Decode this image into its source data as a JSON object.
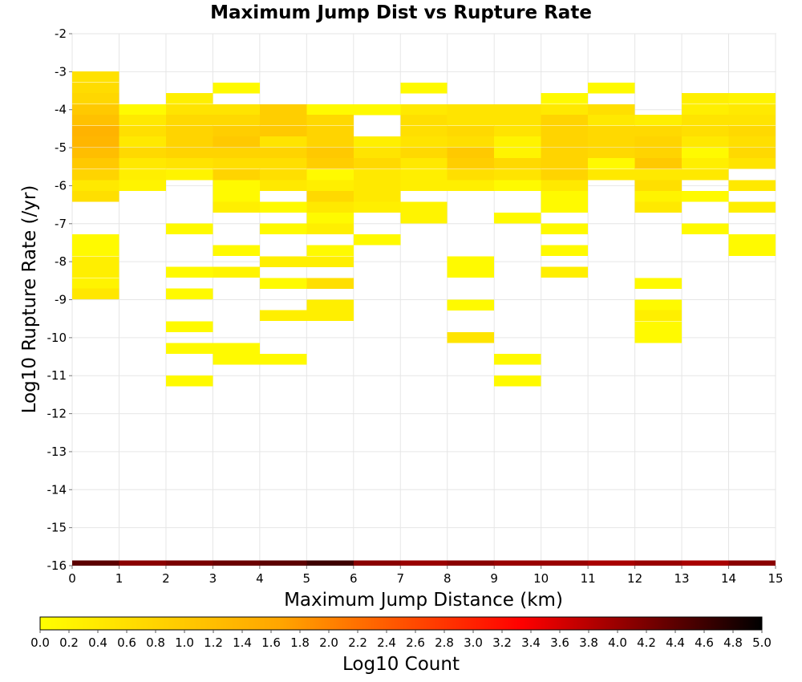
{
  "chart_data": {
    "type": "heatmap",
    "title": "Maximum Jump Dist vs Rupture Rate",
    "xlabel": "Maximum Jump Distance (km)",
    "ylabel": "Log10 Rupture Rate (/yr)",
    "xlim": [
      0,
      15
    ],
    "ylim": [
      -16,
      -2
    ],
    "x_ticks": [
      "0",
      "1",
      "2",
      "3",
      "4",
      "5",
      "6",
      "7",
      "8",
      "9",
      "10",
      "11",
      "12",
      "13",
      "14",
      "15"
    ],
    "y_ticks": [
      "-2",
      "-3",
      "-4",
      "-5",
      "-6",
      "-7",
      "-8",
      "-9",
      "-10",
      "-11",
      "-12",
      "-13",
      "-14",
      "-15",
      "-16"
    ],
    "grid": true,
    "colorbar": {
      "label": "Log10 Count",
      "range": [
        0,
        5
      ],
      "ticks": [
        "0.0",
        "0.2",
        "0.4",
        "0.6",
        "0.8",
        "1.0",
        "1.2",
        "1.4",
        "1.6",
        "1.8",
        "2.0",
        "2.2",
        "2.4",
        "2.6",
        "2.8",
        "3.0",
        "3.2",
        "3.4",
        "3.6",
        "3.8",
        "4.0",
        "4.2",
        "4.4",
        "4.6",
        "4.8",
        "5.0"
      ],
      "stops": [
        "#ffff00",
        "#ffa500",
        "#ff0000",
        "#000000"
      ]
    },
    "bin_width_x": 1,
    "bin_height_y": 0.285,
    "cells": [
      [
        0.5,
        -3.14,
        0.55
      ],
      [
        0.5,
        -3.43,
        0.65
      ],
      [
        0.5,
        -3.71,
        0.75
      ],
      [
        0.5,
        -4.0,
        1.0
      ],
      [
        0.5,
        -4.28,
        1.15
      ],
      [
        0.5,
        -4.57,
        1.4
      ],
      [
        0.5,
        -4.85,
        1.35
      ],
      [
        0.5,
        -5.14,
        1.2
      ],
      [
        0.5,
        -5.42,
        1.0
      ],
      [
        0.5,
        -5.71,
        0.8
      ],
      [
        0.5,
        -6.0,
        0.4
      ],
      [
        0.5,
        -6.28,
        0.6
      ],
      [
        0.5,
        -7.42,
        0.1
      ],
      [
        0.5,
        -7.71,
        0.1
      ],
      [
        0.5,
        -8.0,
        0.3
      ],
      [
        0.5,
        -8.28,
        0.3
      ],
      [
        0.5,
        -8.57,
        0.2
      ],
      [
        0.5,
        -8.85,
        0.45
      ],
      [
        1.5,
        -4.0,
        0.1
      ],
      [
        1.5,
        -4.28,
        0.4
      ],
      [
        1.5,
        -4.57,
        0.6
      ],
      [
        1.5,
        -4.85,
        0.4
      ],
      [
        1.5,
        -5.14,
        0.7
      ],
      [
        1.5,
        -5.42,
        0.4
      ],
      [
        1.5,
        -5.71,
        0.3
      ],
      [
        1.5,
        -6.0,
        0.2
      ],
      [
        2.5,
        -3.71,
        0.3
      ],
      [
        2.5,
        -4.0,
        0.5
      ],
      [
        2.5,
        -4.28,
        0.7
      ],
      [
        2.5,
        -4.57,
        0.8
      ],
      [
        2.5,
        -4.85,
        0.8
      ],
      [
        2.5,
        -5.14,
        0.8
      ],
      [
        2.5,
        -5.42,
        0.5
      ],
      [
        2.5,
        -5.71,
        0.2
      ],
      [
        2.5,
        -7.14,
        0.1
      ],
      [
        2.5,
        -8.28,
        0.1
      ],
      [
        2.5,
        -8.85,
        0.1
      ],
      [
        2.5,
        -9.71,
        0.1
      ],
      [
        2.5,
        -10.28,
        0.1
      ],
      [
        2.5,
        -11.14,
        0.1
      ],
      [
        3.5,
        -3.43,
        0.1
      ],
      [
        3.5,
        -4.0,
        0.5
      ],
      [
        3.5,
        -4.28,
        0.7
      ],
      [
        3.5,
        -4.57,
        0.9
      ],
      [
        3.5,
        -4.85,
        1.0
      ],
      [
        3.5,
        -5.14,
        0.8
      ],
      [
        3.5,
        -5.42,
        0.6
      ],
      [
        3.5,
        -5.71,
        0.8
      ],
      [
        3.5,
        -6.0,
        0.1
      ],
      [
        3.5,
        -6.28,
        0.1
      ],
      [
        3.5,
        -6.57,
        0.3
      ],
      [
        3.5,
        -7.71,
        0.1
      ],
      [
        3.5,
        -8.28,
        0.2
      ],
      [
        3.5,
        -10.28,
        0.1
      ],
      [
        3.5,
        -10.57,
        0.1
      ],
      [
        4.5,
        -4.0,
        0.9
      ],
      [
        4.5,
        -4.28,
        0.9
      ],
      [
        4.5,
        -4.57,
        1.0
      ],
      [
        4.5,
        -4.85,
        0.5
      ],
      [
        4.5,
        -5.14,
        0.8
      ],
      [
        4.5,
        -5.42,
        0.6
      ],
      [
        4.5,
        -5.71,
        0.6
      ],
      [
        4.5,
        -6.0,
        0.4
      ],
      [
        4.5,
        -6.57,
        0.1
      ],
      [
        4.5,
        -7.14,
        0.1
      ],
      [
        4.5,
        -8.0,
        0.3
      ],
      [
        4.5,
        -8.57,
        0.1
      ],
      [
        4.5,
        -9.42,
        0.3
      ],
      [
        4.5,
        -10.57,
        0.1
      ],
      [
        5.5,
        -4.0,
        0.1
      ],
      [
        5.5,
        -4.28,
        0.7
      ],
      [
        5.5,
        -4.57,
        0.8
      ],
      [
        5.5,
        -4.85,
        0.8
      ],
      [
        5.5,
        -5.14,
        1.0
      ],
      [
        5.5,
        -5.42,
        0.9
      ],
      [
        5.5,
        -5.71,
        0.1
      ],
      [
        5.5,
        -6.0,
        0.3
      ],
      [
        5.5,
        -6.28,
        0.7
      ],
      [
        5.5,
        -6.57,
        0.4
      ],
      [
        5.5,
        -6.85,
        0.1
      ],
      [
        5.5,
        -7.14,
        0.3
      ],
      [
        5.5,
        -7.71,
        0.1
      ],
      [
        5.5,
        -8.0,
        0.3
      ],
      [
        5.5,
        -8.57,
        0.6
      ],
      [
        5.5,
        -9.14,
        0.3
      ],
      [
        5.5,
        -9.42,
        0.3
      ],
      [
        6.5,
        -4.0,
        0.1
      ],
      [
        6.5,
        -4.85,
        0.3
      ],
      [
        6.5,
        -5.14,
        0.5
      ],
      [
        6.5,
        -5.42,
        0.7
      ],
      [
        6.5,
        -5.71,
        0.4
      ],
      [
        6.5,
        -6.0,
        0.4
      ],
      [
        6.5,
        -6.28,
        0.4
      ],
      [
        6.5,
        -6.57,
        0.3
      ],
      [
        6.5,
        -7.42,
        0.1
      ],
      [
        7.5,
        -3.43,
        0.1
      ],
      [
        7.5,
        -4.0,
        0.4
      ],
      [
        7.5,
        -4.28,
        0.6
      ],
      [
        7.5,
        -4.57,
        0.6
      ],
      [
        7.5,
        -4.85,
        0.5
      ],
      [
        7.5,
        -5.14,
        0.7
      ],
      [
        7.5,
        -5.42,
        0.4
      ],
      [
        7.5,
        -5.71,
        0.3
      ],
      [
        7.5,
        -6.0,
        0.3
      ],
      [
        7.5,
        -6.57,
        0.2
      ],
      [
        7.5,
        -6.85,
        0.2
      ],
      [
        8.5,
        -4.0,
        0.5
      ],
      [
        8.5,
        -4.28,
        0.5
      ],
      [
        8.5,
        -4.57,
        0.7
      ],
      [
        8.5,
        -4.85,
        0.6
      ],
      [
        8.5,
        -5.14,
        1.0
      ],
      [
        8.5,
        -5.42,
        0.9
      ],
      [
        8.5,
        -5.71,
        0.6
      ],
      [
        8.5,
        -6.0,
        0.3
      ],
      [
        8.5,
        -8.0,
        0.1
      ],
      [
        8.5,
        -8.28,
        0.1
      ],
      [
        8.5,
        -9.14,
        0.1
      ],
      [
        8.5,
        -10.0,
        0.5
      ],
      [
        9.5,
        -4.0,
        0.5
      ],
      [
        9.5,
        -4.28,
        0.5
      ],
      [
        9.5,
        -4.57,
        0.5
      ],
      [
        9.5,
        -4.85,
        0.2
      ],
      [
        9.5,
        -5.14,
        0.2
      ],
      [
        9.5,
        -5.42,
        0.7
      ],
      [
        9.5,
        -5.71,
        0.5
      ],
      [
        9.5,
        -6.0,
        0.1
      ],
      [
        9.5,
        -6.85,
        0.1
      ],
      [
        9.5,
        -10.57,
        0.1
      ],
      [
        9.5,
        -11.14,
        0.1
      ],
      [
        10.5,
        -3.71,
        0.1
      ],
      [
        10.5,
        -4.0,
        0.4
      ],
      [
        10.5,
        -4.28,
        0.8
      ],
      [
        10.5,
        -4.57,
        0.8
      ],
      [
        10.5,
        -4.85,
        0.8
      ],
      [
        10.5,
        -5.14,
        0.8
      ],
      [
        10.5,
        -5.42,
        0.8
      ],
      [
        10.5,
        -5.71,
        0.8
      ],
      [
        10.5,
        -6.0,
        0.4
      ],
      [
        10.5,
        -6.28,
        0.1
      ],
      [
        10.5,
        -6.57,
        0.1
      ],
      [
        10.5,
        -7.14,
        0.1
      ],
      [
        10.5,
        -7.71,
        0.1
      ],
      [
        10.5,
        -8.28,
        0.3
      ],
      [
        11.5,
        -3.43,
        0.1
      ],
      [
        11.5,
        -4.0,
        0.6
      ],
      [
        11.5,
        -4.28,
        0.4
      ],
      [
        11.5,
        -4.57,
        0.7
      ],
      [
        11.5,
        -4.85,
        0.7
      ],
      [
        11.5,
        -5.14,
        0.7
      ],
      [
        11.5,
        -5.42,
        0.1
      ],
      [
        11.5,
        -5.71,
        0.4
      ],
      [
        12.5,
        -4.28,
        0.3
      ],
      [
        12.5,
        -4.57,
        0.7
      ],
      [
        12.5,
        -4.85,
        0.8
      ],
      [
        12.5,
        -5.14,
        0.8
      ],
      [
        12.5,
        -5.42,
        1.0
      ],
      [
        12.5,
        -5.71,
        0.4
      ],
      [
        12.5,
        -6.0,
        0.6
      ],
      [
        12.5,
        -6.28,
        0.2
      ],
      [
        12.5,
        -6.57,
        0.4
      ],
      [
        12.5,
        -8.57,
        0.1
      ],
      [
        12.5,
        -9.14,
        0.1
      ],
      [
        12.5,
        -9.42,
        0.3
      ],
      [
        12.5,
        -9.71,
        0.1
      ],
      [
        12.5,
        -10.0,
        0.1
      ],
      [
        13.5,
        -3.71,
        0.3
      ],
      [
        13.5,
        -4.0,
        0.3
      ],
      [
        13.5,
        -4.28,
        0.5
      ],
      [
        13.5,
        -4.57,
        0.6
      ],
      [
        13.5,
        -4.85,
        0.4
      ],
      [
        13.5,
        -5.14,
        0.1
      ],
      [
        13.5,
        -5.42,
        0.3
      ],
      [
        13.5,
        -5.71,
        0.4
      ],
      [
        13.5,
        -6.28,
        0.1
      ],
      [
        13.5,
        -7.14,
        0.1
      ],
      [
        14.5,
        -3.71,
        0.2
      ],
      [
        14.5,
        -4.0,
        0.4
      ],
      [
        14.5,
        -4.28,
        0.5
      ],
      [
        14.5,
        -4.57,
        0.7
      ],
      [
        14.5,
        -4.85,
        0.6
      ],
      [
        14.5,
        -5.14,
        0.7
      ],
      [
        14.5,
        -5.42,
        0.5
      ],
      [
        14.5,
        -6.0,
        0.4
      ],
      [
        14.5,
        -6.57,
        0.3
      ],
      [
        14.5,
        -7.42,
        0.1
      ],
      [
        14.5,
        -7.71,
        0.1
      ],
      [
        0.5,
        -16.0,
        4.4
      ],
      [
        1.5,
        -16.0,
        4.1
      ],
      [
        2.5,
        -16.0,
        4.2
      ],
      [
        3.5,
        -16.0,
        4.3
      ],
      [
        4.5,
        -16.0,
        4.4
      ],
      [
        5.5,
        -16.0,
        4.6
      ],
      [
        6.5,
        -16.0,
        4.1
      ],
      [
        7.5,
        -16.0,
        4.0
      ],
      [
        8.5,
        -16.0,
        4.1
      ],
      [
        9.5,
        -16.0,
        4.0
      ],
      [
        10.5,
        -16.0,
        4.0
      ],
      [
        11.5,
        -16.0,
        3.9
      ],
      [
        12.5,
        -16.0,
        4.0
      ],
      [
        13.5,
        -16.0,
        3.9
      ],
      [
        14.5,
        -16.0,
        4.1
      ]
    ]
  }
}
